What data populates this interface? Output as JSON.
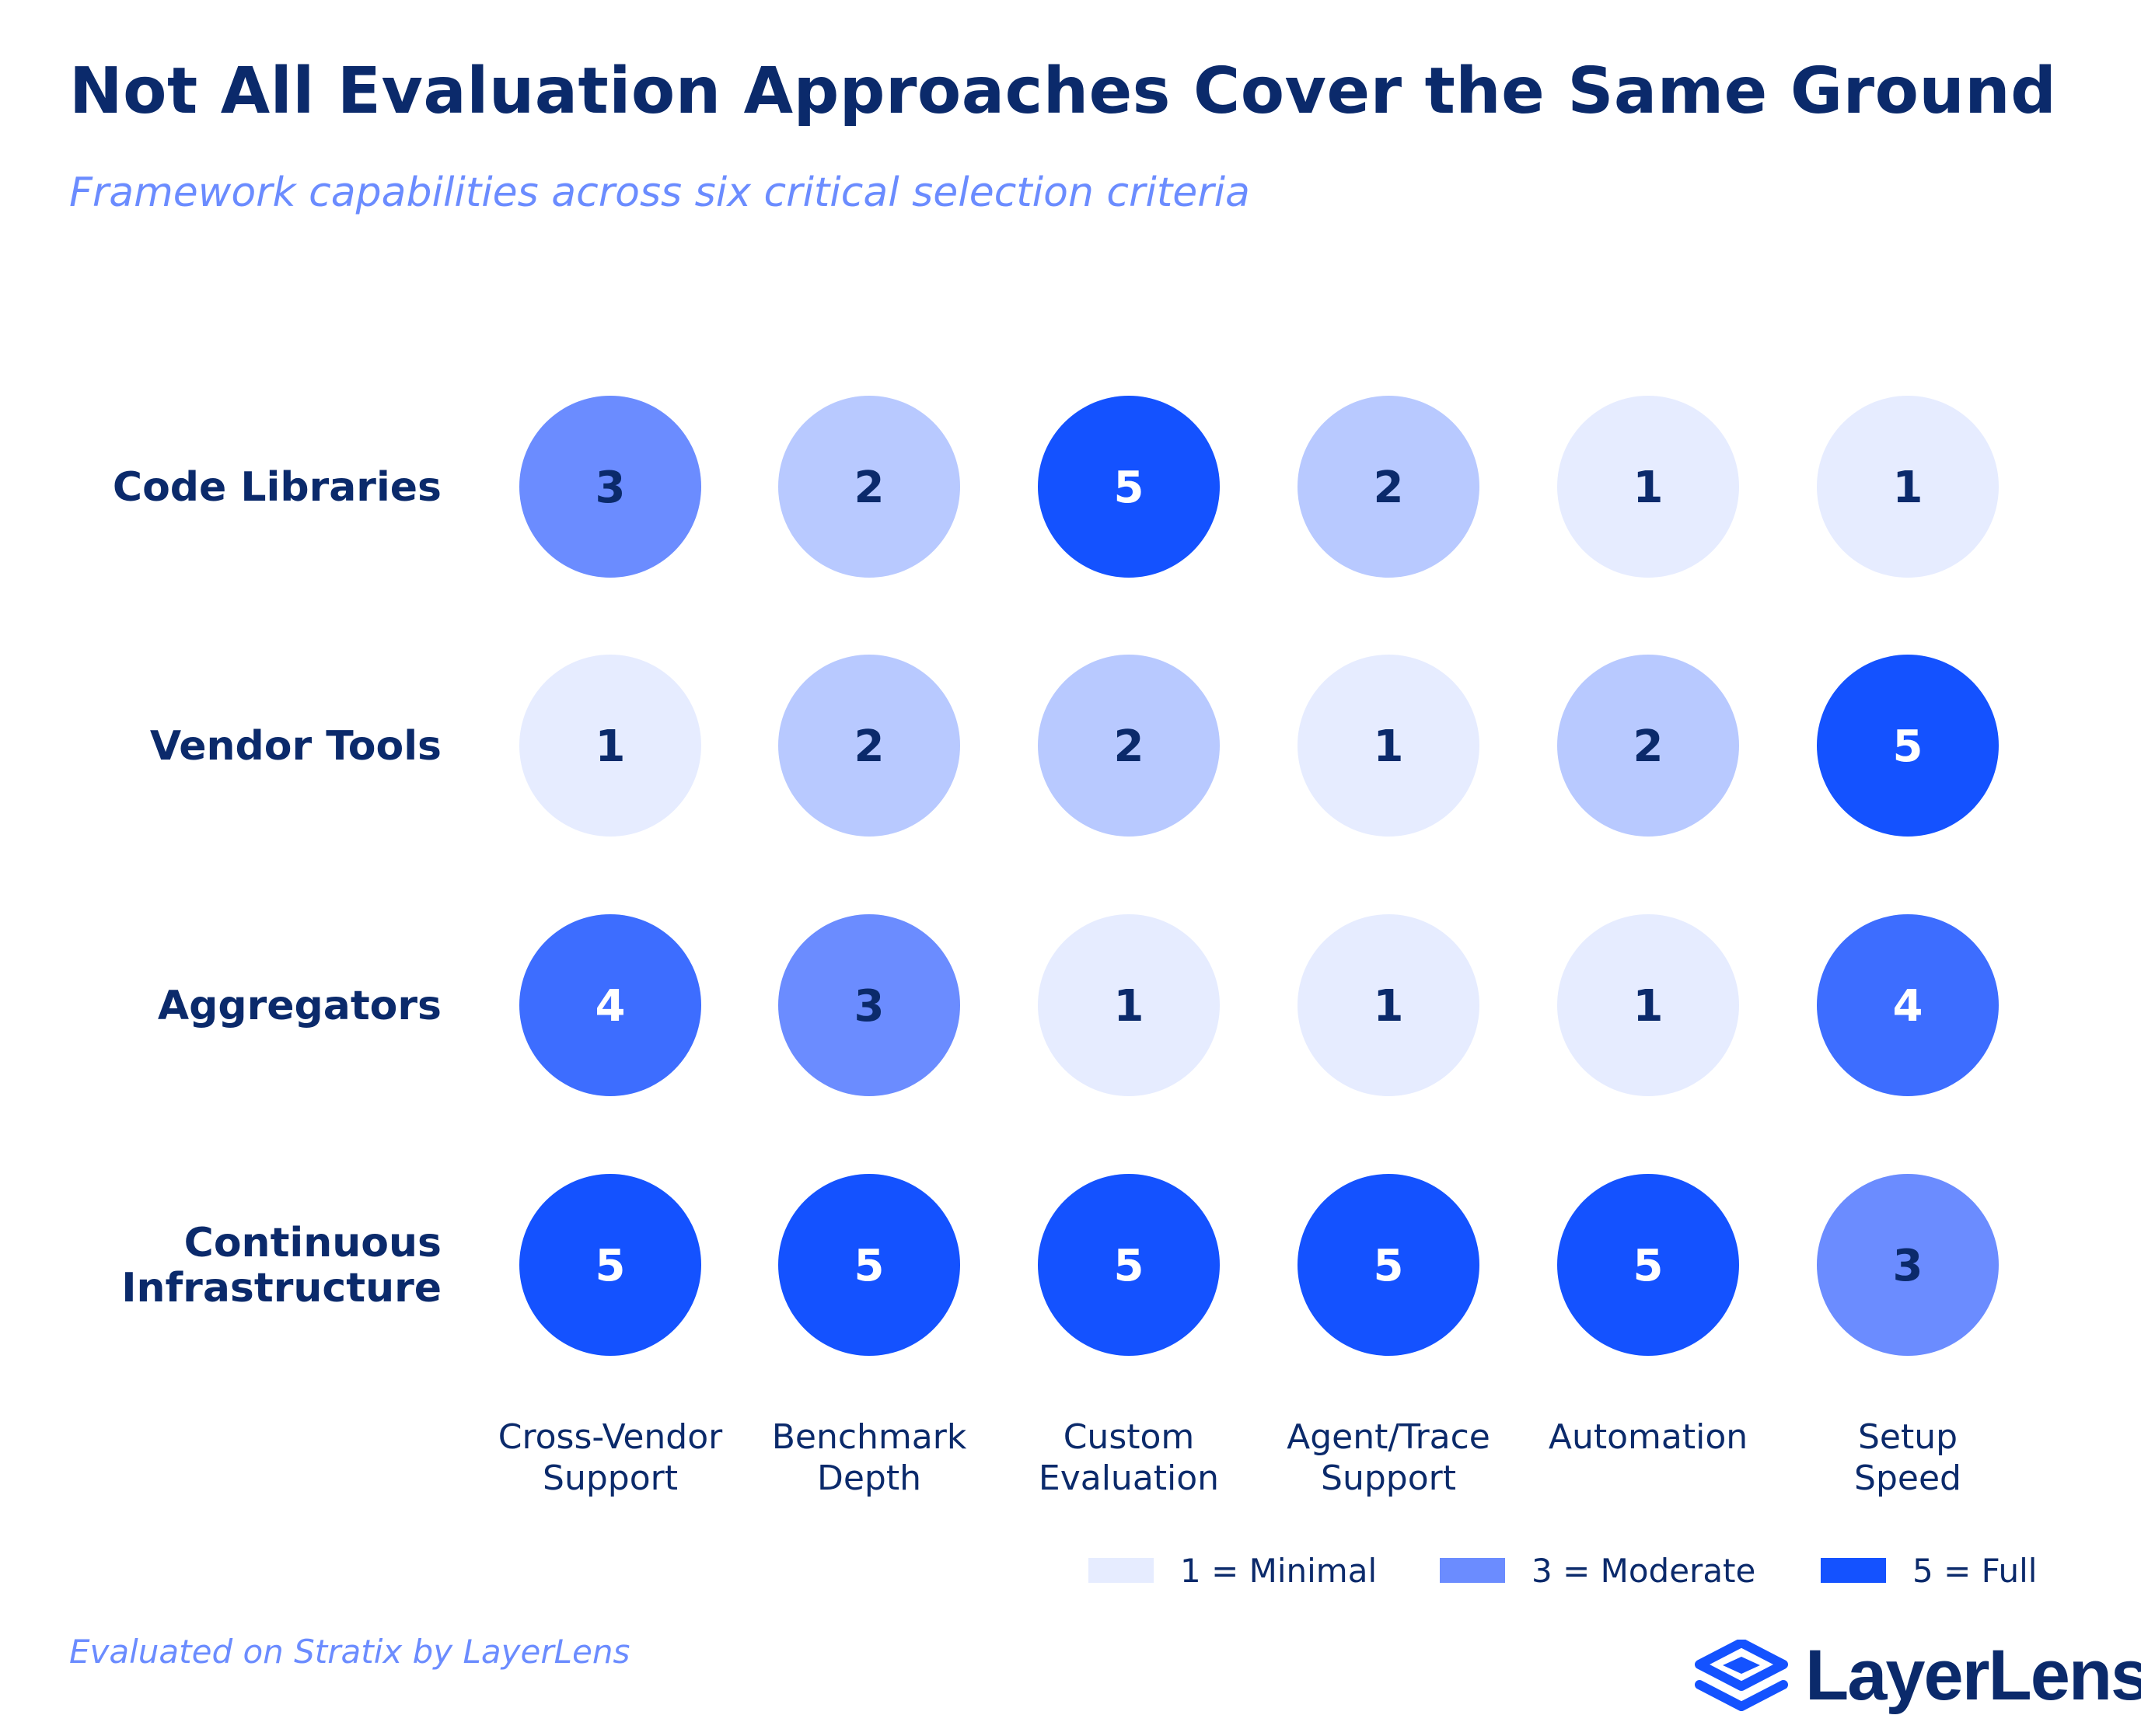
{
  "title": "Not All Evaluation Approaches Cover the Same Ground",
  "subtitle": "Framework capabilities across six critical selection criteria",
  "footer": "Evaluated on Stratix by LayerLens",
  "logo": {
    "text": "LayerLens",
    "icon": "layers-icon"
  },
  "colors": {
    "title": "#0b2a6b",
    "subtitle": "#6b8cff",
    "level_1": "#e6ecff",
    "level_2": "#b8c9ff",
    "level_3": "#6b8cff",
    "level_4": "#3d6dff",
    "level_5": "#1452ff",
    "text_dark": "#0b2a6b",
    "text_light": "#ffffff"
  },
  "chart_data": {
    "type": "heatmap",
    "title": "Not All Evaluation Approaches Cover the Same Ground",
    "subtitle": "Framework capabilities across six critical selection criteria",
    "rows": [
      [
        "Code Libraries"
      ],
      [
        "Vendor Tools"
      ],
      [
        "Aggregators"
      ],
      [
        "Continuous",
        "Infrastructure"
      ]
    ],
    "columns": [
      [
        "Cross-Vendor",
        "Support"
      ],
      [
        "Benchmark",
        "Depth"
      ],
      [
        "Custom",
        "Evaluation"
      ],
      [
        "Agent/Trace",
        "Support"
      ],
      [
        "Automation"
      ],
      [
        "Setup",
        "Speed"
      ]
    ],
    "values": [
      [
        3,
        2,
        5,
        2,
        1,
        1
      ],
      [
        1,
        2,
        2,
        1,
        2,
        5
      ],
      [
        4,
        3,
        1,
        1,
        1,
        4
      ],
      [
        5,
        5,
        5,
        5,
        5,
        3
      ]
    ],
    "scale": [
      1,
      5
    ],
    "legend": {
      "placement": "bottom-right",
      "items": [
        {
          "label": "1 = Minimal",
          "level": 1
        },
        {
          "label": "3 = Moderate",
          "level": 3
        },
        {
          "label": "5 = Full",
          "level": 5
        }
      ]
    }
  }
}
